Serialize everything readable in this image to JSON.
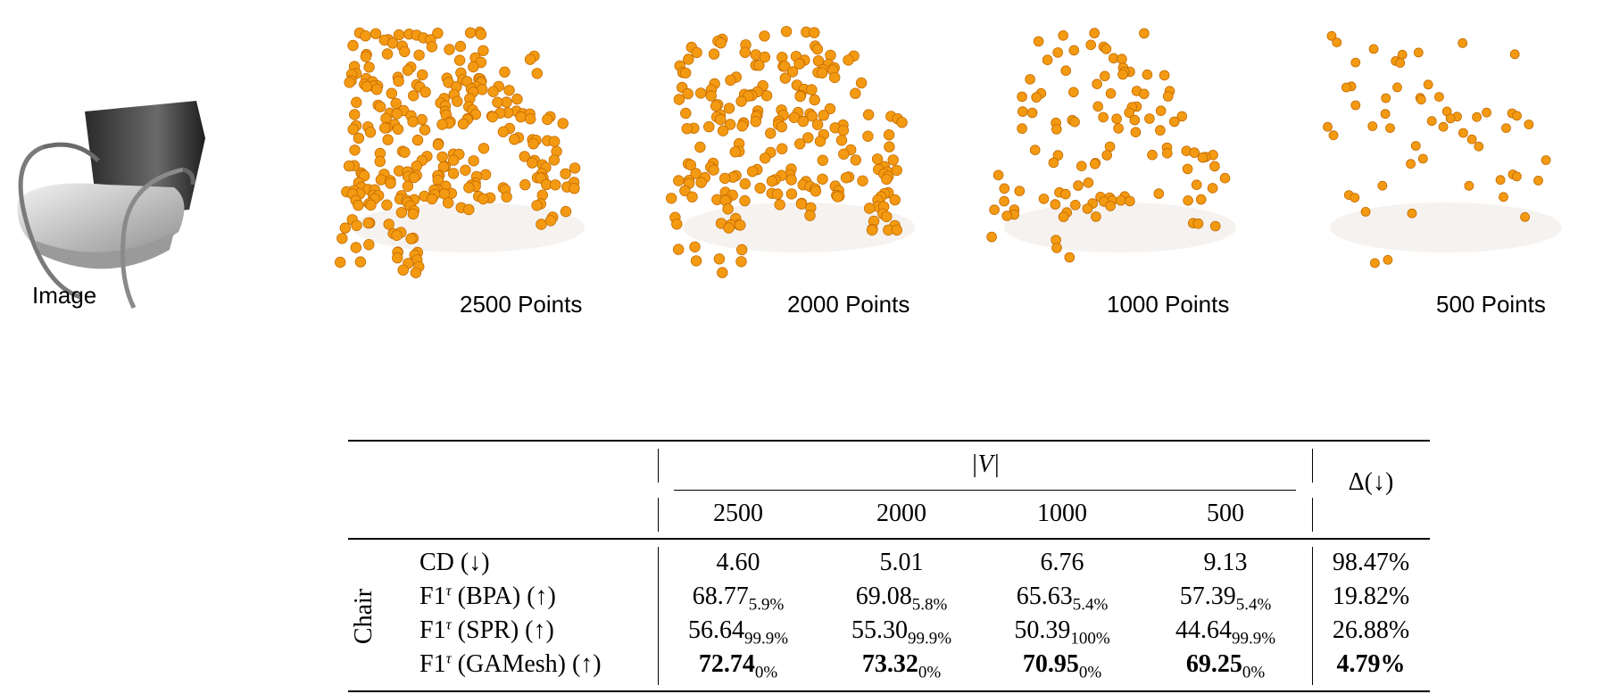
{
  "figure": {
    "panels": [
      {
        "id": "image",
        "caption": "Image"
      },
      {
        "id": "p2500",
        "caption": "2500 Points",
        "points": 2500
      },
      {
        "id": "p2000",
        "caption": "2000 Points",
        "points": 2000
      },
      {
        "id": "p1000",
        "caption": "1000 Points",
        "points": 1000
      },
      {
        "id": "p500",
        "caption": "500 Points",
        "points": 500
      }
    ],
    "point_color": "#f39a12"
  },
  "table": {
    "group_header": "|V|",
    "delta_header": "Δ(↓)",
    "columns": [
      "2500",
      "2000",
      "1000",
      "500"
    ],
    "row_group": "Chair",
    "rows": [
      {
        "metric": "CD (↓)",
        "values": [
          "4.60",
          "5.01",
          "6.76",
          "9.13"
        ],
        "subs": [
          "",
          "",
          "",
          ""
        ],
        "delta": "98.47%",
        "bold": false
      },
      {
        "metric": "F1",
        "sup": "τ",
        "metric_rest": " (BPA) (↑)",
        "values": [
          "68.77",
          "69.08",
          "65.63",
          "57.39"
        ],
        "subs": [
          "5.9%",
          "5.8%",
          "5.4%",
          "5.4%"
        ],
        "delta": "19.82%",
        "bold": false
      },
      {
        "metric": "F1",
        "sup": "τ",
        "metric_rest": " (SPR) (↑)",
        "values": [
          "56.64",
          "55.30",
          "50.39",
          "44.64"
        ],
        "subs": [
          "99.9%",
          "99.9%",
          "100%",
          "99.9%"
        ],
        "delta": "26.88%",
        "bold": false
      },
      {
        "metric": "F1",
        "sup": "τ",
        "metric_rest": " (GAMesh) (↑)",
        "values": [
          "72.74",
          "73.32",
          "70.95",
          "69.25"
        ],
        "subs": [
          "0%",
          "0%",
          "0%",
          "0%"
        ],
        "delta": "4.79%",
        "bold": true
      }
    ]
  }
}
